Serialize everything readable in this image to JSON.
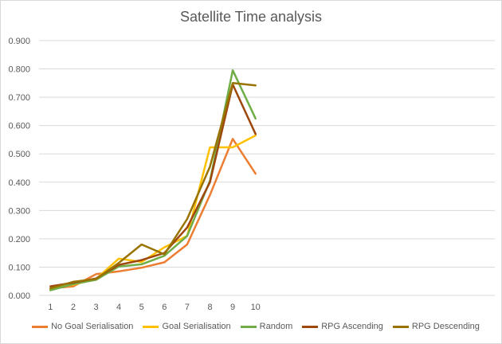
{
  "chart_data": {
    "type": "line",
    "title": "Satellite Time analysis",
    "xlabel": "",
    "ylabel": "",
    "categories": [
      "1",
      "2",
      "3",
      "4",
      "5",
      "6",
      "7",
      "8",
      "9",
      "10"
    ],
    "ylim": [
      0,
      0.9
    ],
    "yticks": [
      "0.000",
      "0.100",
      "0.200",
      "0.300",
      "0.400",
      "0.500",
      "0.600",
      "0.700",
      "0.800",
      "0.900"
    ],
    "grid": "horizontal",
    "legend_position": "bottom",
    "series": [
      {
        "name": "No Goal Serialisation",
        "color": "#ED7D31",
        "values": [
          0.025,
          0.032,
          0.075,
          0.085,
          0.098,
          0.117,
          0.18,
          0.355,
          0.553,
          0.43
        ]
      },
      {
        "name": "Goal Serialisation",
        "color": "#FFC000",
        "values": [
          0.022,
          0.038,
          0.058,
          0.13,
          0.118,
          0.17,
          0.21,
          0.523,
          0.523,
          0.565
        ]
      },
      {
        "name": "Random",
        "color": "#70AD47",
        "values": [
          0.018,
          0.04,
          0.055,
          0.102,
          0.11,
          0.14,
          0.21,
          0.405,
          0.795,
          0.625
        ]
      },
      {
        "name": "RPG Ascending",
        "color": "#9E480E",
        "values": [
          0.032,
          0.045,
          0.06,
          0.108,
          0.125,
          0.15,
          0.24,
          0.4,
          0.745,
          0.57
        ]
      },
      {
        "name": "RPG Descending",
        "color": "#997300",
        "values": [
          0.025,
          0.048,
          0.058,
          0.115,
          0.18,
          0.145,
          0.27,
          0.455,
          0.75,
          0.742
        ]
      }
    ]
  }
}
